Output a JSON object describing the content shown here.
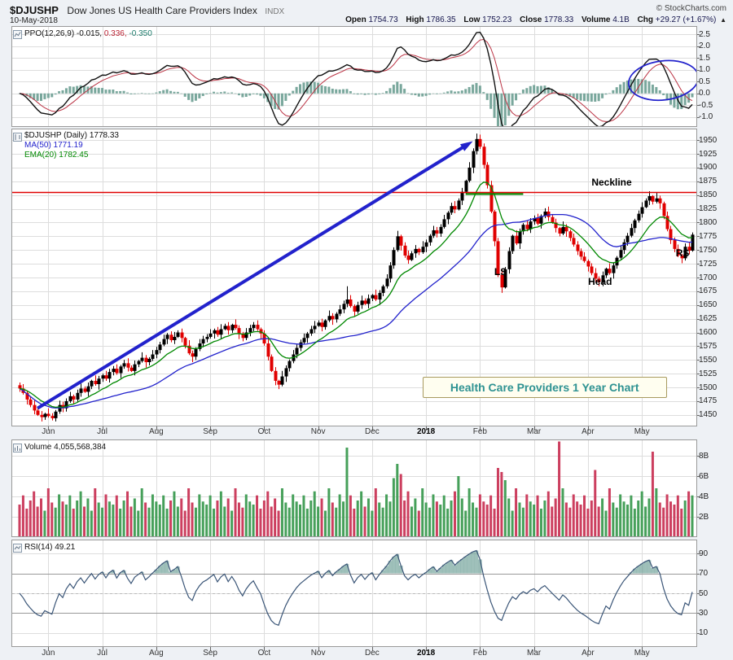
{
  "header": {
    "symbol": "$DJUSHP",
    "name": "Dow Jones US Health Care Providers Index",
    "exchange": "INDX",
    "copyright": "© StockCharts.com",
    "date": "10-May-2018",
    "quote": [
      {
        "label": "Open",
        "value": "1754.73"
      },
      {
        "label": "High",
        "value": "1786.35"
      },
      {
        "label": "Low",
        "value": "1752.23"
      },
      {
        "label": "Close",
        "value": "1778.33"
      },
      {
        "label": "Volume",
        "value": "4.1B"
      },
      {
        "label": "Chg",
        "value": "+29.27 (+1.67%)"
      }
    ],
    "chg_arrow": "▲"
  },
  "panels": {
    "ppo": {
      "label_parts": [
        {
          "text": "PPO(12,26,9) -0.015,"
        },
        {
          "text": "0.336,"
        },
        {
          "text": "-0.350"
        }
      ],
      "ticks": [
        {
          "v": 2.5,
          "t": "2.5"
        },
        {
          "v": 2.0,
          "t": "2.0"
        },
        {
          "v": 1.5,
          "t": "1.5"
        },
        {
          "v": 1.0,
          "t": "1.0"
        },
        {
          "v": 0.5,
          "t": "0.5"
        },
        {
          "v": 0.0,
          "t": "0.0"
        },
        {
          "v": -0.5,
          "t": "-0.5"
        },
        {
          "v": -1.0,
          "t": "-1.0"
        }
      ]
    },
    "price": {
      "title": "$DJUSHP (Daily) 1778.33",
      "ma_label": "MA(50) 1771.19",
      "ema_label": "EMA(20) 1782.45",
      "ticks": [
        {
          "v": 1950,
          "t": "1950"
        },
        {
          "v": 1925,
          "t": "1925"
        },
        {
          "v": 1900,
          "t": "1900"
        },
        {
          "v": 1875,
          "t": "1875"
        },
        {
          "v": 1850,
          "t": "1850"
        },
        {
          "v": 1825,
          "t": "1825"
        },
        {
          "v": 1800,
          "t": "1800"
        },
        {
          "v": 1775,
          "t": "1775"
        },
        {
          "v": 1750,
          "t": "1750"
        },
        {
          "v": 1725,
          "t": "1725"
        },
        {
          "v": 1700,
          "t": "1700"
        },
        {
          "v": 1675,
          "t": "1675"
        },
        {
          "v": 1650,
          "t": "1650"
        },
        {
          "v": 1625,
          "t": "1625"
        },
        {
          "v": 1600,
          "t": "1600"
        },
        {
          "v": 1575,
          "t": "1575"
        },
        {
          "v": 1550,
          "t": "1550"
        },
        {
          "v": 1525,
          "t": "1525"
        },
        {
          "v": 1500,
          "t": "1500"
        },
        {
          "v": 1475,
          "t": "1475"
        },
        {
          "v": 1450,
          "t": "1450"
        }
      ]
    },
    "volume": {
      "label": "Volume 4,055,568,384",
      "ticks": [
        {
          "v": 8,
          "t": "8B"
        },
        {
          "v": 6,
          "t": "6B"
        },
        {
          "v": 4,
          "t": "4B"
        },
        {
          "v": 2,
          "t": "2B"
        }
      ]
    },
    "rsi": {
      "label": "RSI(14) 49.21",
      "ticks": [
        {
          "v": 90,
          "t": "90"
        },
        {
          "v": 70,
          "t": "70"
        },
        {
          "v": 50,
          "t": "50"
        },
        {
          "v": 30,
          "t": "30"
        },
        {
          "v": 10,
          "t": "10"
        }
      ]
    }
  },
  "colors": {
    "page_bg": "#eef1f5",
    "panel_bg": "#ffffff",
    "panel_border": "#999999",
    "grid": "#dddddd",
    "candle_up": "#000000",
    "candle_down": "#e00000",
    "ma50": "#2222cc",
    "ema20": "#008800",
    "volume_up": "#46a05a",
    "volume_down": "#cc3f5f",
    "ppo_line": "#111111",
    "ppo_signal": "#bb3344",
    "ppo_hist": "#79a79c",
    "rsi_line": "#3a5577",
    "rsi_band": "#999999",
    "rsi_fill": "rgba(80,140,130,0.55)",
    "neckline": "#e00000",
    "annotation_blue": "#2222cc",
    "callout_text": "#2e9292",
    "callout_border": "#a89a5f"
  },
  "chart_data": {
    "type": "candlestick",
    "title": "$DJUSHP Dow Jones US Health Care Providers Index (INDX), Daily, 1 year (May 2017 - May 2018)",
    "panels": [
      "PPO(12,26,9)",
      "price with MA(50) and EMA(20)",
      "Volume",
      "RSI(14)"
    ],
    "price_axis": {
      "min": 1429,
      "max": 1971,
      "tick_step": 25
    },
    "indicator_values": {
      "ppo": -0.015,
      "ppo_signal": 0.336,
      "ppo_hist": -0.35,
      "ma50": 1771.19,
      "ema20": 1782.45,
      "rsi": 49.21,
      "last_open": 1754.73,
      "last_high": 1786.35,
      "last_low": 1752.23,
      "last_close": 1778.33,
      "last_volume": 4055568384,
      "change": "+29.27 (+1.67%)"
    },
    "months": [
      {
        "t": "Jun",
        "i": 8
      },
      {
        "t": "Jul",
        "i": 23
      },
      {
        "t": "Aug",
        "i": 38
      },
      {
        "t": "Sep",
        "i": 53
      },
      {
        "t": "Oct",
        "i": 68
      },
      {
        "t": "Nov",
        "i": 83
      },
      {
        "t": "Dec",
        "i": 98
      },
      {
        "t": "2018",
        "i": 113,
        "bold": true
      },
      {
        "t": "Feb",
        "i": 128
      },
      {
        "t": "Mar",
        "i": 143
      },
      {
        "t": "Apr",
        "i": 158
      },
      {
        "t": "May",
        "i": 173
      }
    ],
    "closes": [
      1498,
      1490,
      1478,
      1468,
      1458,
      1450,
      1446,
      1452,
      1448,
      1444,
      1456,
      1468,
      1462,
      1475,
      1484,
      1478,
      1490,
      1498,
      1492,
      1502,
      1512,
      1506,
      1516,
      1522,
      1516,
      1528,
      1534,
      1526,
      1538,
      1544,
      1536,
      1530,
      1542,
      1548,
      1554,
      1546,
      1552,
      1560,
      1568,
      1578,
      1588,
      1596,
      1586,
      1592,
      1600,
      1590,
      1576,
      1562,
      1556,
      1570,
      1580,
      1588,
      1592,
      1598,
      1604,
      1596,
      1606,
      1612,
      1604,
      1614,
      1608,
      1598,
      1590,
      1600,
      1608,
      1614,
      1606,
      1598,
      1580,
      1556,
      1530,
      1512,
      1505,
      1520,
      1535,
      1548,
      1560,
      1572,
      1582,
      1590,
      1598,
      1606,
      1612,
      1618,
      1610,
      1622,
      1630,
      1624,
      1634,
      1642,
      1652,
      1660,
      1648,
      1638,
      1650,
      1658,
      1652,
      1662,
      1668,
      1660,
      1672,
      1684,
      1698,
      1722,
      1750,
      1775,
      1758,
      1740,
      1732,
      1744,
      1752,
      1746,
      1756,
      1764,
      1776,
      1786,
      1780,
      1792,
      1806,
      1818,
      1830,
      1824,
      1840,
      1856,
      1876,
      1900,
      1930,
      1952,
      1938,
      1905,
      1868,
      1820,
      1766,
      1705,
      1682,
      1715,
      1748,
      1776,
      1762,
      1784,
      1796,
      1788,
      1802,
      1808,
      1798,
      1812,
      1820,
      1810,
      1800,
      1790,
      1780,
      1792,
      1784,
      1772,
      1760,
      1748,
      1738,
      1730,
      1720,
      1708,
      1698,
      1692,
      1704,
      1716,
      1708,
      1722,
      1736,
      1750,
      1764,
      1776,
      1790,
      1804,
      1816,
      1828,
      1840,
      1848,
      1838,
      1844,
      1835,
      1812,
      1788,
      1768,
      1752,
      1740,
      1735,
      1756,
      1749,
      1778
    ],
    "high_off": [
      5,
      8,
      3,
      6,
      9,
      4,
      7,
      2,
      10,
      5,
      3,
      8,
      6,
      5,
      8,
      3,
      6,
      9,
      4,
      7,
      2,
      10,
      5,
      3,
      8,
      6,
      5,
      8,
      3,
      6,
      9,
      4,
      7,
      2,
      10,
      5,
      3,
      8,
      6,
      5,
      8,
      3,
      6,
      9,
      4,
      7,
      2,
      10,
      5,
      3,
      8,
      6,
      5,
      8,
      3,
      6,
      9,
      4,
      7,
      2,
      10,
      5,
      3,
      8,
      6,
      5,
      8,
      3,
      6,
      9,
      4,
      7,
      2,
      10,
      5,
      3,
      8,
      6,
      5,
      8,
      3,
      6,
      9,
      4,
      7,
      2,
      10,
      5,
      3,
      8,
      6,
      24,
      8,
      3,
      6,
      9,
      4,
      7,
      2,
      10,
      5,
      3,
      8,
      6,
      5,
      10,
      3,
      6,
      9,
      4,
      7,
      2,
      10,
      5,
      3,
      8,
      6,
      5,
      8,
      3,
      6,
      9,
      4,
      7,
      2,
      10,
      5,
      10,
      8,
      6,
      5,
      8,
      3,
      6,
      9,
      4,
      7,
      2,
      10,
      5,
      3,
      8,
      6,
      5,
      8,
      3,
      6,
      9,
      4,
      7,
      2,
      10,
      5,
      3,
      8,
      6,
      5,
      8,
      3,
      6,
      9,
      4,
      7,
      2,
      10,
      5,
      3,
      8,
      6,
      5,
      8,
      3,
      6,
      9,
      4,
      9,
      2,
      10,
      5,
      3,
      8,
      6,
      5,
      8,
      3,
      6,
      9,
      4
    ],
    "low_off": [
      6,
      3,
      9,
      4,
      7,
      2,
      8,
      5,
      3,
      4,
      6,
      4,
      7,
      6,
      3,
      9,
      4,
      7,
      2,
      8,
      5,
      3,
      10,
      6,
      4,
      7,
      6,
      3,
      9,
      4,
      7,
      2,
      8,
      5,
      3,
      10,
      6,
      4,
      7,
      6,
      3,
      9,
      4,
      7,
      2,
      8,
      5,
      3,
      10,
      6,
      4,
      7,
      6,
      3,
      9,
      4,
      7,
      2,
      8,
      5,
      3,
      10,
      6,
      4,
      7,
      6,
      3,
      9,
      4,
      7,
      2,
      8,
      8,
      3,
      10,
      6,
      4,
      7,
      6,
      3,
      9,
      4,
      7,
      2,
      8,
      5,
      3,
      10,
      6,
      4,
      7,
      6,
      3,
      9,
      4,
      7,
      2,
      8,
      5,
      3,
      10,
      6,
      4,
      7,
      6,
      3,
      9,
      4,
      7,
      2,
      8,
      5,
      3,
      10,
      6,
      4,
      7,
      6,
      3,
      9,
      4,
      7,
      2,
      8,
      5,
      3,
      10,
      6,
      4,
      7,
      6,
      3,
      9,
      4,
      10,
      2,
      8,
      5,
      3,
      10,
      6,
      4,
      7,
      6,
      3,
      9,
      4,
      7,
      2,
      8,
      5,
      3,
      10,
      6,
      4,
      7,
      6,
      3,
      9,
      4,
      7,
      8,
      8,
      5,
      3,
      10,
      6,
      4,
      7,
      6,
      3,
      9,
      4,
      7,
      2,
      8,
      5,
      3,
      10,
      6,
      4,
      7,
      6,
      3,
      9,
      4,
      7,
      2
    ],
    "volumes_billions": [
      3.2,
      4.1,
      2.8,
      3.6,
      4.5,
      3.0,
      3.8,
      2.6,
      4.8,
      3.4,
      2.9,
      4.2,
      3.5,
      3.2,
      4.1,
      2.8,
      3.6,
      4.5,
      3.0,
      3.8,
      2.6,
      4.8,
      3.4,
      2.9,
      4.2,
      3.5,
      3.2,
      4.1,
      2.8,
      3.6,
      4.5,
      3.0,
      3.8,
      2.6,
      4.8,
      3.4,
      2.9,
      4.2,
      3.5,
      3.2,
      4.1,
      2.8,
      3.6,
      4.5,
      3.0,
      3.8,
      2.6,
      4.8,
      3.4,
      2.9,
      4.2,
      3.5,
      3.2,
      4.1,
      2.8,
      3.6,
      4.5,
      3.0,
      3.8,
      2.6,
      4.8,
      3.4,
      2.9,
      4.2,
      3.5,
      3.2,
      4.1,
      2.8,
      3.6,
      4.5,
      3.0,
      3.8,
      2.6,
      4.8,
      3.4,
      2.9,
      4.2,
      3.5,
      3.2,
      4.1,
      2.8,
      3.6,
      4.5,
      3.0,
      3.8,
      2.6,
      4.8,
      3.4,
      2.9,
      4.2,
      3.5,
      8.8,
      4.1,
      2.8,
      3.6,
      4.5,
      3.0,
      3.8,
      2.6,
      4.8,
      3.4,
      2.9,
      4.2,
      3.5,
      5.8,
      7.2,
      6.2,
      3.6,
      4.5,
      3.0,
      3.8,
      2.6,
      4.8,
      3.4,
      2.9,
      4.2,
      3.5,
      3.2,
      4.1,
      2.8,
      3.6,
      4.5,
      6.0,
      3.8,
      2.6,
      4.8,
      3.4,
      2.9,
      4.2,
      3.5,
      3.2,
      4.1,
      2.8,
      6.8,
      6.4,
      5.6,
      3.8,
      2.6,
      4.8,
      3.4,
      2.9,
      4.2,
      3.5,
      3.2,
      4.1,
      2.8,
      3.6,
      4.5,
      3.0,
      3.8,
      9.4,
      4.8,
      3.4,
      2.9,
      4.2,
      3.5,
      3.2,
      4.1,
      2.8,
      3.6,
      6.6,
      3.0,
      3.8,
      2.6,
      4.8,
      3.4,
      2.9,
      4.2,
      3.5,
      3.2,
      4.1,
      2.8,
      3.6,
      4.5,
      3.0,
      3.8,
      8.4,
      4.8,
      3.4,
      2.9,
      4.2,
      3.5,
      3.2,
      4.1,
      2.8,
      3.6,
      4.5,
      4.1
    ],
    "annotations": {
      "neckline": {
        "label": "Neckline",
        "price": 1856
      },
      "green_segment": {
        "price": 1852,
        "i0": 124,
        "i1": 140
      },
      "trend_arrow": {
        "from": {
          "i": 5,
          "price": 1462
        },
        "to": {
          "i": 126,
          "price": 1948
        }
      },
      "ppo_ellipse": {
        "i": 179,
        "v": 0.55
      },
      "ls": {
        "label": "LS",
        "i": 134,
        "price": 1712
      },
      "head": {
        "label": "Head",
        "i": 161,
        "price": 1697
      },
      "rs": {
        "label": "RS",
        "i": 184,
        "price": 1742
      },
      "callout": {
        "text": "Health Care Providers 1 Year Chart",
        "i": 112,
        "price": 1520
      }
    }
  }
}
